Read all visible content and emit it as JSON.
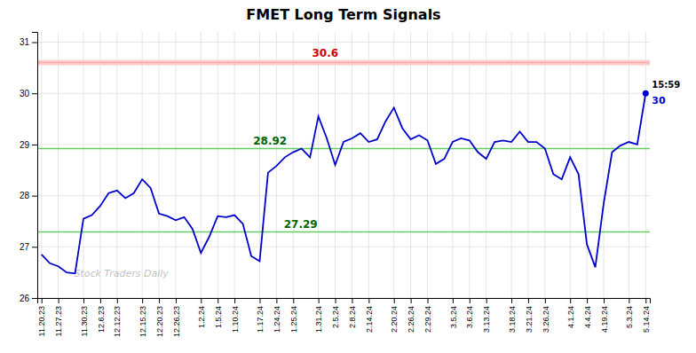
{
  "chart_data": {
    "type": "line",
    "title": "FMET Long Term Signals",
    "categories": [
      "11.20.23",
      null,
      "11.27.23",
      null,
      null,
      "11.30.23",
      null,
      "12.6.23",
      null,
      "12.12.23",
      null,
      null,
      "12.15.23",
      null,
      "12.20.23",
      null,
      "12.26.23",
      null,
      null,
      "1.2.24",
      null,
      "1.5.24",
      null,
      "1.10.24",
      null,
      null,
      "1.17.24",
      null,
      "1.24.24",
      null,
      "1.25.24",
      null,
      null,
      "1.31.24",
      null,
      "2.5.24",
      null,
      "2.8.24",
      null,
      "2.14.24",
      null,
      null,
      "2.20.24",
      null,
      "2.26.24",
      null,
      "2.29.24",
      null,
      null,
      "3.5.24",
      null,
      "3.6.24",
      null,
      "3.13.24",
      null,
      null,
      "3.18.24",
      null,
      "3.21.24",
      null,
      "3.26.24",
      null,
      null,
      "4.1.24",
      null,
      "4.4.24",
      null,
      "4.19.24",
      null,
      null,
      "5.3.24",
      null,
      "5.14.24"
    ],
    "values": [
      26.85,
      26.68,
      26.62,
      26.5,
      26.48,
      27.55,
      27.62,
      27.8,
      28.05,
      28.1,
      27.95,
      28.05,
      28.32,
      28.15,
      27.65,
      27.6,
      27.52,
      27.58,
      27.35,
      26.88,
      27.2,
      27.6,
      27.58,
      27.62,
      27.45,
      26.82,
      26.72,
      28.45,
      28.58,
      28.75,
      28.85,
      28.92,
      28.75,
      29.55,
      29.12,
      28.6,
      29.05,
      29.12,
      29.22,
      29.05,
      29.1,
      29.45,
      29.72,
      29.32,
      29.1,
      29.18,
      29.08,
      28.62,
      28.72,
      29.05,
      29.12,
      29.08,
      28.85,
      28.72,
      29.05,
      29.08,
      29.05,
      29.25,
      29.05,
      29.05,
      28.92,
      28.42,
      28.32,
      28.75,
      28.42,
      27.05,
      26.6,
      27.85,
      28.85,
      28.98,
      29.05,
      29.0,
      30.0
    ],
    "color": "#0000cc",
    "ylim": [
      26.0,
      31.2
    ],
    "yticks": [
      26,
      27,
      28,
      29,
      30,
      31
    ],
    "grid": true,
    "reference_lines": [
      {
        "value": 30.6,
        "label": "30.6",
        "color": "#ffaaaa",
        "band_color": "#ffcccc",
        "label_color": "#cc0000"
      },
      {
        "value": 28.92,
        "label": "28.92",
        "color": "#66cc66",
        "label_color": "#006600"
      },
      {
        "value": 27.29,
        "label": "27.29",
        "color": "#66cc66",
        "label_color": "#006600"
      }
    ],
    "end_time_label": "15:59",
    "end_value_label": "30",
    "watermark": "Stock Traders Daily"
  }
}
